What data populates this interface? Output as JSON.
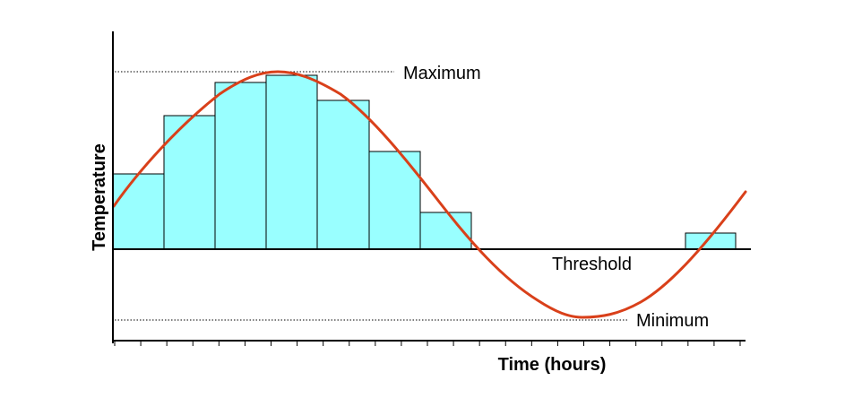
{
  "diagram": {
    "y_axis_label": "Temperature",
    "x_axis_label": "Time (hours)",
    "labels": {
      "maximum": "Maximum",
      "threshold": "Threshold",
      "minimum": "Minimum"
    },
    "colors": {
      "bar_fill": "#99ffff",
      "bar_stroke": "#000000",
      "curve": "#d9401a",
      "axis": "#000000",
      "reference_line": "#000000"
    },
    "hour_ticks": 24
  }
}
